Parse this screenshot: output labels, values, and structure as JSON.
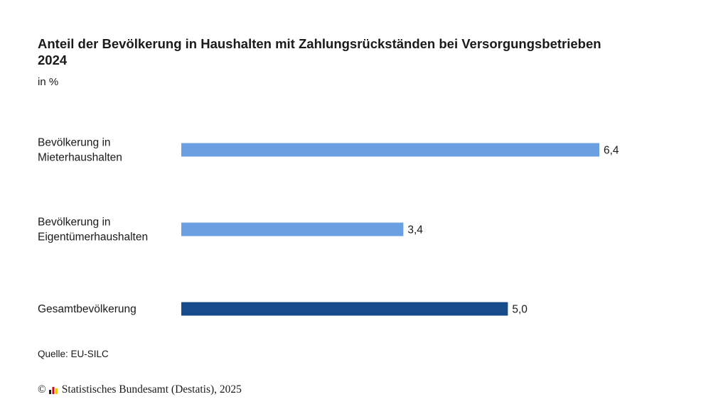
{
  "header": {
    "title_line1": "Anteil der Bevölkerung in Haushalten mit Zahlungsrückständen bei Versorgungsbetrieben",
    "title_line2": "2024",
    "unit": "in %"
  },
  "chart_data": {
    "type": "bar",
    "orientation": "horizontal",
    "title": "Anteil der Bevölkerung in Haushalten mit Zahlungsrückständen bei Versorgungsbetrieben 2024",
    "subtitle": "in %",
    "categories": [
      [
        "Bevölkerung in",
        "Mieterhaushalten"
      ],
      [
        "Bevölkerung in",
        "Eigentümerhaushalten"
      ],
      [
        "Gesamtbevölkerung"
      ]
    ],
    "values": [
      6.4,
      3.4,
      5.0
    ],
    "value_labels": [
      "6,4",
      "3,4",
      "5,0"
    ],
    "colors": [
      "#6a9fe2",
      "#6a9fe2",
      "#174c8a"
    ],
    "xlim": [
      0,
      7
    ],
    "grid": false,
    "legend": "none"
  },
  "footer": {
    "source": "Quelle: EU-SILC",
    "copyright_symbol": "©",
    "copyright_text": "Statistisches Bundesamt (Destatis), 2025"
  },
  "colors": {
    "light_bar": "#6a9fe2",
    "dark_bar": "#174c8a",
    "text": "#1a1a1a"
  },
  "icons": {
    "logo": "destatis-logo-icon"
  }
}
